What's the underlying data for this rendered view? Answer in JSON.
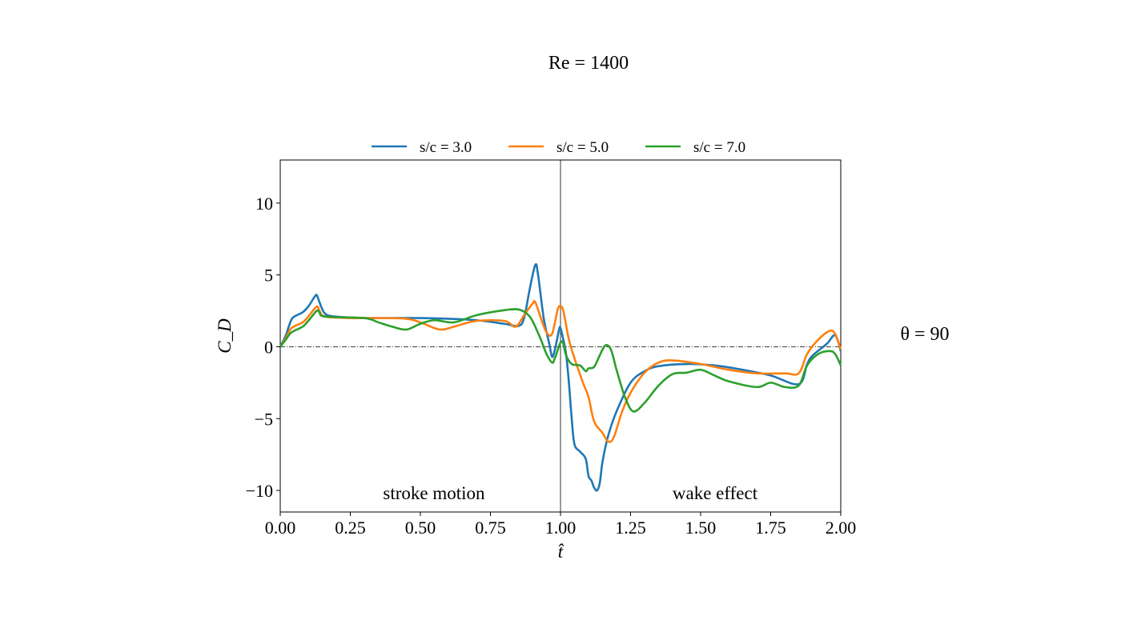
{
  "chart_data": {
    "type": "line",
    "title": "Re = 1400",
    "side_label": "θ = 90",
    "xlabel": "t̂",
    "ylabel": "C_D",
    "xlim": [
      0,
      2
    ],
    "ylim": [
      -11.5,
      13
    ],
    "xticks": [
      "0.00",
      "0.25",
      "0.50",
      "0.75",
      "1.00",
      "1.25",
      "1.50",
      "1.75",
      "2.00"
    ],
    "yticks": [
      "−10",
      "−5",
      "0",
      "5",
      "10"
    ],
    "legend_position": "top-center",
    "grid": false,
    "reference_lines": {
      "vertical_x": 1.0,
      "horizontal_y": 0
    },
    "annotations": [
      "stroke motion",
      "wake effect"
    ],
    "series": [
      {
        "name": "s/c = 3.0",
        "color": "#1f77b4",
        "points": [
          [
            0.0,
            0.0
          ],
          [
            0.02,
            0.8
          ],
          [
            0.04,
            1.9
          ],
          [
            0.06,
            2.2
          ],
          [
            0.08,
            2.4
          ],
          [
            0.1,
            2.8
          ],
          [
            0.12,
            3.4
          ],
          [
            0.13,
            3.6
          ],
          [
            0.14,
            3.1
          ],
          [
            0.16,
            2.3
          ],
          [
            0.2,
            2.1
          ],
          [
            0.3,
            2.0
          ],
          [
            0.4,
            2.0
          ],
          [
            0.5,
            2.0
          ],
          [
            0.6,
            1.95
          ],
          [
            0.7,
            1.85
          ],
          [
            0.8,
            1.6
          ],
          [
            0.85,
            1.45
          ],
          [
            0.87,
            2.0
          ],
          [
            0.89,
            4.0
          ],
          [
            0.91,
            5.7
          ],
          [
            0.92,
            5.0
          ],
          [
            0.94,
            2.0
          ],
          [
            0.96,
            0.2
          ],
          [
            0.97,
            -0.7
          ],
          [
            0.98,
            -0.2
          ],
          [
            0.995,
            1.2
          ],
          [
            1.0,
            1.3
          ],
          [
            1.01,
            0.5
          ],
          [
            1.02,
            -0.5
          ],
          [
            1.03,
            -2.5
          ],
          [
            1.04,
            -5.0
          ],
          [
            1.05,
            -6.8
          ],
          [
            1.07,
            -7.3
          ],
          [
            1.09,
            -7.8
          ],
          [
            1.1,
            -9.0
          ],
          [
            1.11,
            -9.3
          ],
          [
            1.12,
            -9.8
          ],
          [
            1.13,
            -10.0
          ],
          [
            1.14,
            -9.5
          ],
          [
            1.15,
            -8.0
          ],
          [
            1.17,
            -6.2
          ],
          [
            1.2,
            -4.5
          ],
          [
            1.25,
            -2.5
          ],
          [
            1.3,
            -1.7
          ],
          [
            1.35,
            -1.35
          ],
          [
            1.45,
            -1.2
          ],
          [
            1.55,
            -1.3
          ],
          [
            1.65,
            -1.6
          ],
          [
            1.75,
            -2.0
          ],
          [
            1.85,
            -2.6
          ],
          [
            1.88,
            -1.2
          ],
          [
            1.9,
            -0.6
          ],
          [
            1.95,
            0.2
          ],
          [
            1.98,
            0.8
          ],
          [
            2.0,
            -0.3
          ]
        ]
      },
      {
        "name": "s/c = 5.0",
        "color": "#ff7f0e",
        "points": [
          [
            0.0,
            0.0
          ],
          [
            0.02,
            0.6
          ],
          [
            0.04,
            1.3
          ],
          [
            0.08,
            1.7
          ],
          [
            0.1,
            2.1
          ],
          [
            0.13,
            2.8
          ],
          [
            0.14,
            2.5
          ],
          [
            0.16,
            2.1
          ],
          [
            0.25,
            2.0
          ],
          [
            0.35,
            2.0
          ],
          [
            0.45,
            1.95
          ],
          [
            0.5,
            1.7
          ],
          [
            0.55,
            1.3
          ],
          [
            0.58,
            1.2
          ],
          [
            0.62,
            1.4
          ],
          [
            0.7,
            1.8
          ],
          [
            0.8,
            1.8
          ],
          [
            0.84,
            1.4
          ],
          [
            0.87,
            2.2
          ],
          [
            0.9,
            3.0
          ],
          [
            0.91,
            3.1
          ],
          [
            0.93,
            2.0
          ],
          [
            0.95,
            1.0
          ],
          [
            0.97,
            0.9
          ],
          [
            0.99,
            2.6
          ],
          [
            1.0,
            2.8
          ],
          [
            1.01,
            2.5
          ],
          [
            1.03,
            0.5
          ],
          [
            1.05,
            -0.8
          ],
          [
            1.08,
            -2.5
          ],
          [
            1.1,
            -3.5
          ],
          [
            1.12,
            -5.2
          ],
          [
            1.15,
            -6.0
          ],
          [
            1.17,
            -6.6
          ],
          [
            1.19,
            -6.3
          ],
          [
            1.22,
            -4.5
          ],
          [
            1.25,
            -3.2
          ],
          [
            1.3,
            -1.8
          ],
          [
            1.35,
            -1.1
          ],
          [
            1.4,
            -0.95
          ],
          [
            1.5,
            -1.2
          ],
          [
            1.6,
            -1.6
          ],
          [
            1.7,
            -1.85
          ],
          [
            1.8,
            -1.85
          ],
          [
            1.85,
            -1.85
          ],
          [
            1.88,
            -0.5
          ],
          [
            1.92,
            0.5
          ],
          [
            1.96,
            1.1
          ],
          [
            1.98,
            0.9
          ],
          [
            2.0,
            -0.2
          ]
        ]
      },
      {
        "name": "s/c = 7.0",
        "color": "#2ca02c",
        "points": [
          [
            0.0,
            0.0
          ],
          [
            0.02,
            0.5
          ],
          [
            0.04,
            1.0
          ],
          [
            0.08,
            1.4
          ],
          [
            0.1,
            1.8
          ],
          [
            0.13,
            2.5
          ],
          [
            0.14,
            2.4
          ],
          [
            0.16,
            2.1
          ],
          [
            0.3,
            2.0
          ],
          [
            0.35,
            1.7
          ],
          [
            0.4,
            1.4
          ],
          [
            0.45,
            1.2
          ],
          [
            0.5,
            1.6
          ],
          [
            0.55,
            1.85
          ],
          [
            0.62,
            1.7
          ],
          [
            0.7,
            2.2
          ],
          [
            0.8,
            2.55
          ],
          [
            0.85,
            2.6
          ],
          [
            0.88,
            2.3
          ],
          [
            0.9,
            1.8
          ],
          [
            0.93,
            0.5
          ],
          [
            0.95,
            -0.5
          ],
          [
            0.97,
            -1.1
          ],
          [
            0.98,
            -0.8
          ],
          [
            1.0,
            0.3
          ],
          [
            1.01,
            0.2
          ],
          [
            1.02,
            -0.6
          ],
          [
            1.04,
            -1.2
          ],
          [
            1.07,
            -1.3
          ],
          [
            1.09,
            -1.7
          ],
          [
            1.1,
            -1.5
          ],
          [
            1.12,
            -1.4
          ],
          [
            1.14,
            -0.6
          ],
          [
            1.16,
            0.1
          ],
          [
            1.18,
            -0.2
          ],
          [
            1.2,
            -1.6
          ],
          [
            1.23,
            -3.5
          ],
          [
            1.26,
            -4.5
          ],
          [
            1.3,
            -3.9
          ],
          [
            1.35,
            -2.7
          ],
          [
            1.4,
            -1.9
          ],
          [
            1.45,
            -1.8
          ],
          [
            1.5,
            -1.6
          ],
          [
            1.55,
            -2.0
          ],
          [
            1.6,
            -2.4
          ],
          [
            1.7,
            -2.8
          ],
          [
            1.75,
            -2.5
          ],
          [
            1.8,
            -2.8
          ],
          [
            1.85,
            -2.7
          ],
          [
            1.88,
            -1.3
          ],
          [
            1.92,
            -0.5
          ],
          [
            1.96,
            -0.3
          ],
          [
            1.98,
            -0.5
          ],
          [
            2.0,
            -1.3
          ]
        ]
      }
    ]
  }
}
